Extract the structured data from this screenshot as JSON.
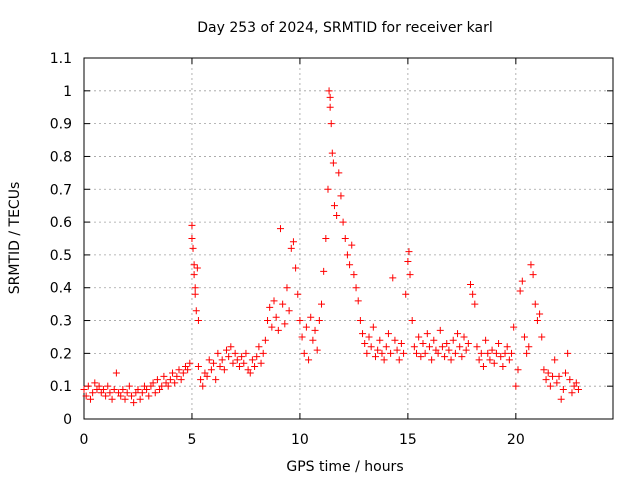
{
  "chart_data": {
    "type": "scatter",
    "title": "Day 253 of 2024, SRMTID for receiver karl",
    "xlabel": "GPS time / hours",
    "ylabel": "SRMTID / TECUs",
    "xlim": [
      0,
      24.5
    ],
    "ylim": [
      0,
      1.1
    ],
    "xticks": [
      0,
      5,
      10,
      15,
      20
    ],
    "xtick_labels": [
      "0",
      "5",
      "10",
      "15",
      "20"
    ],
    "yticks": [
      0,
      0.1,
      0.2,
      0.3,
      0.4,
      0.5,
      0.6,
      0.7,
      0.8,
      0.9,
      1,
      1.1
    ],
    "ytick_labels": [
      "0",
      "0.1",
      "0.2",
      "0.3",
      "0.4",
      "0.5",
      "0.6",
      "0.7",
      "0.8",
      "0.9",
      "1",
      "1.1"
    ],
    "grid": true,
    "marker": "+",
    "color": "#ff0000",
    "series": [
      {
        "name": "SRMTID",
        "points": [
          [
            0.0,
            0.09
          ],
          [
            0.1,
            0.07
          ],
          [
            0.2,
            0.1
          ],
          [
            0.3,
            0.06
          ],
          [
            0.4,
            0.08
          ],
          [
            0.5,
            0.11
          ],
          [
            0.6,
            0.09
          ],
          [
            0.7,
            0.1
          ],
          [
            0.8,
            0.08
          ],
          [
            0.9,
            0.09
          ],
          [
            1.0,
            0.07
          ],
          [
            1.1,
            0.1
          ],
          [
            1.2,
            0.08
          ],
          [
            1.3,
            0.06
          ],
          [
            1.4,
            0.09
          ],
          [
            1.5,
            0.14
          ],
          [
            1.6,
            0.08
          ],
          [
            1.7,
            0.07
          ],
          [
            1.8,
            0.09
          ],
          [
            1.9,
            0.06
          ],
          [
            2.0,
            0.08
          ],
          [
            2.1,
            0.1
          ],
          [
            2.2,
            0.07
          ],
          [
            2.3,
            0.05
          ],
          [
            2.4,
            0.08
          ],
          [
            2.5,
            0.09
          ],
          [
            2.6,
            0.06
          ],
          [
            2.7,
            0.08
          ],
          [
            2.8,
            0.1
          ],
          [
            2.9,
            0.09
          ],
          [
            3.0,
            0.07
          ],
          [
            3.1,
            0.1
          ],
          [
            3.2,
            0.11
          ],
          [
            3.3,
            0.08
          ],
          [
            3.4,
            0.12
          ],
          [
            3.5,
            0.09
          ],
          [
            3.6,
            0.1
          ],
          [
            3.7,
            0.13
          ],
          [
            3.8,
            0.11
          ],
          [
            3.9,
            0.1
          ],
          [
            4.0,
            0.12
          ],
          [
            4.1,
            0.14
          ],
          [
            4.2,
            0.11
          ],
          [
            4.3,
            0.13
          ],
          [
            4.4,
            0.15
          ],
          [
            4.5,
            0.12
          ],
          [
            4.6,
            0.14
          ],
          [
            4.7,
            0.16
          ],
          [
            4.8,
            0.15
          ],
          [
            4.9,
            0.17
          ],
          [
            5.0,
            0.59
          ],
          [
            5.0,
            0.55
          ],
          [
            5.05,
            0.52
          ],
          [
            5.1,
            0.47
          ],
          [
            5.1,
            0.44
          ],
          [
            5.15,
            0.4
          ],
          [
            5.15,
            0.38
          ],
          [
            5.2,
            0.33
          ],
          [
            5.25,
            0.46
          ],
          [
            5.3,
            0.3
          ],
          [
            5.3,
            0.16
          ],
          [
            5.4,
            0.12
          ],
          [
            5.5,
            0.1
          ],
          [
            5.6,
            0.14
          ],
          [
            5.7,
            0.13
          ],
          [
            5.8,
            0.18
          ],
          [
            5.9,
            0.15
          ],
          [
            6.0,
            0.17
          ],
          [
            6.1,
            0.12
          ],
          [
            6.2,
            0.2
          ],
          [
            6.3,
            0.16
          ],
          [
            6.4,
            0.18
          ],
          [
            6.5,
            0.15
          ],
          [
            6.6,
            0.21
          ],
          [
            6.7,
            0.19
          ],
          [
            6.8,
            0.22
          ],
          [
            6.9,
            0.17
          ],
          [
            7.0,
            0.2
          ],
          [
            7.1,
            0.18
          ],
          [
            7.2,
            0.16
          ],
          [
            7.3,
            0.19
          ],
          [
            7.4,
            0.17
          ],
          [
            7.5,
            0.2
          ],
          [
            7.6,
            0.15
          ],
          [
            7.7,
            0.14
          ],
          [
            7.8,
            0.18
          ],
          [
            7.9,
            0.16
          ],
          [
            8.0,
            0.19
          ],
          [
            8.1,
            0.22
          ],
          [
            8.2,
            0.17
          ],
          [
            8.3,
            0.2
          ],
          [
            8.4,
            0.24
          ],
          [
            8.5,
            0.3
          ],
          [
            8.6,
            0.34
          ],
          [
            8.7,
            0.28
          ],
          [
            8.8,
            0.36
          ],
          [
            8.9,
            0.31
          ],
          [
            9.0,
            0.27
          ],
          [
            9.1,
            0.58
          ],
          [
            9.2,
            0.35
          ],
          [
            9.3,
            0.29
          ],
          [
            9.4,
            0.4
          ],
          [
            9.5,
            0.33
          ],
          [
            9.6,
            0.52
          ],
          [
            9.7,
            0.54
          ],
          [
            9.8,
            0.46
          ],
          [
            9.9,
            0.38
          ],
          [
            10.0,
            0.3
          ],
          [
            10.1,
            0.25
          ],
          [
            10.2,
            0.2
          ],
          [
            10.3,
            0.28
          ],
          [
            10.4,
            0.18
          ],
          [
            10.5,
            0.31
          ],
          [
            10.6,
            0.24
          ],
          [
            10.7,
            0.27
          ],
          [
            10.8,
            0.21
          ],
          [
            10.9,
            0.3
          ],
          [
            11.0,
            0.35
          ],
          [
            11.1,
            0.45
          ],
          [
            11.2,
            0.55
          ],
          [
            11.3,
            0.7
          ],
          [
            11.35,
            1.0
          ],
          [
            11.4,
            0.98
          ],
          [
            11.4,
            0.95
          ],
          [
            11.45,
            0.9
          ],
          [
            11.5,
            0.81
          ],
          [
            11.55,
            0.78
          ],
          [
            11.6,
            0.65
          ],
          [
            11.7,
            0.62
          ],
          [
            11.8,
            0.75
          ],
          [
            11.9,
            0.68
          ],
          [
            12.0,
            0.6
          ],
          [
            12.1,
            0.55
          ],
          [
            12.2,
            0.5
          ],
          [
            12.3,
            0.47
          ],
          [
            12.4,
            0.53
          ],
          [
            12.5,
            0.44
          ],
          [
            12.6,
            0.4
          ],
          [
            12.7,
            0.36
          ],
          [
            12.8,
            0.3
          ],
          [
            12.9,
            0.26
          ],
          [
            13.0,
            0.23
          ],
          [
            13.1,
            0.2
          ],
          [
            13.2,
            0.25
          ],
          [
            13.3,
            0.22
          ],
          [
            13.4,
            0.28
          ],
          [
            13.5,
            0.19
          ],
          [
            13.6,
            0.21
          ],
          [
            13.7,
            0.24
          ],
          [
            13.8,
            0.2
          ],
          [
            13.9,
            0.18
          ],
          [
            14.0,
            0.22
          ],
          [
            14.1,
            0.26
          ],
          [
            14.2,
            0.2
          ],
          [
            14.3,
            0.43
          ],
          [
            14.4,
            0.24
          ],
          [
            14.5,
            0.21
          ],
          [
            14.6,
            0.18
          ],
          [
            14.7,
            0.23
          ],
          [
            14.8,
            0.2
          ],
          [
            14.9,
            0.38
          ],
          [
            15.0,
            0.48
          ],
          [
            15.05,
            0.51
          ],
          [
            15.1,
            0.44
          ],
          [
            15.2,
            0.3
          ],
          [
            15.3,
            0.22
          ],
          [
            15.4,
            0.2
          ],
          [
            15.5,
            0.25
          ],
          [
            15.6,
            0.19
          ],
          [
            15.7,
            0.23
          ],
          [
            15.8,
            0.2
          ],
          [
            15.9,
            0.26
          ],
          [
            16.0,
            0.22
          ],
          [
            16.1,
            0.18
          ],
          [
            16.2,
            0.24
          ],
          [
            16.3,
            0.21
          ],
          [
            16.4,
            0.2
          ],
          [
            16.5,
            0.27
          ],
          [
            16.6,
            0.22
          ],
          [
            16.7,
            0.19
          ],
          [
            16.8,
            0.23
          ],
          [
            16.9,
            0.21
          ],
          [
            17.0,
            0.18
          ],
          [
            17.1,
            0.24
          ],
          [
            17.2,
            0.2
          ],
          [
            17.3,
            0.26
          ],
          [
            17.4,
            0.22
          ],
          [
            17.5,
            0.19
          ],
          [
            17.6,
            0.25
          ],
          [
            17.7,
            0.21
          ],
          [
            17.8,
            0.23
          ],
          [
            17.9,
            0.41
          ],
          [
            18.0,
            0.38
          ],
          [
            18.1,
            0.35
          ],
          [
            18.2,
            0.22
          ],
          [
            18.3,
            0.18
          ],
          [
            18.4,
            0.2
          ],
          [
            18.5,
            0.16
          ],
          [
            18.6,
            0.24
          ],
          [
            18.7,
            0.2
          ],
          [
            18.8,
            0.18
          ],
          [
            18.9,
            0.21
          ],
          [
            19.0,
            0.17
          ],
          [
            19.1,
            0.2
          ],
          [
            19.2,
            0.23
          ],
          [
            19.3,
            0.19
          ],
          [
            19.4,
            0.16
          ],
          [
            19.5,
            0.2
          ],
          [
            19.6,
            0.22
          ],
          [
            19.7,
            0.18
          ],
          [
            19.8,
            0.2
          ],
          [
            19.9,
            0.28
          ],
          [
            20.0,
            0.1
          ],
          [
            20.1,
            0.15
          ],
          [
            20.2,
            0.39
          ],
          [
            20.3,
            0.42
          ],
          [
            20.4,
            0.25
          ],
          [
            20.5,
            0.2
          ],
          [
            20.6,
            0.22
          ],
          [
            20.7,
            0.47
          ],
          [
            20.8,
            0.44
          ],
          [
            20.9,
            0.35
          ],
          [
            21.0,
            0.3
          ],
          [
            21.1,
            0.32
          ],
          [
            21.2,
            0.25
          ],
          [
            21.3,
            0.15
          ],
          [
            21.4,
            0.12
          ],
          [
            21.5,
            0.14
          ],
          [
            21.6,
            0.1
          ],
          [
            21.7,
            0.13
          ],
          [
            21.8,
            0.18
          ],
          [
            21.9,
            0.11
          ],
          [
            22.0,
            0.13
          ],
          [
            22.1,
            0.06
          ],
          [
            22.2,
            0.09
          ],
          [
            22.3,
            0.14
          ],
          [
            22.4,
            0.2
          ],
          [
            22.5,
            0.12
          ],
          [
            22.6,
            0.08
          ],
          [
            22.7,
            0.1
          ],
          [
            22.8,
            0.11
          ],
          [
            22.9,
            0.09
          ]
        ]
      }
    ]
  }
}
